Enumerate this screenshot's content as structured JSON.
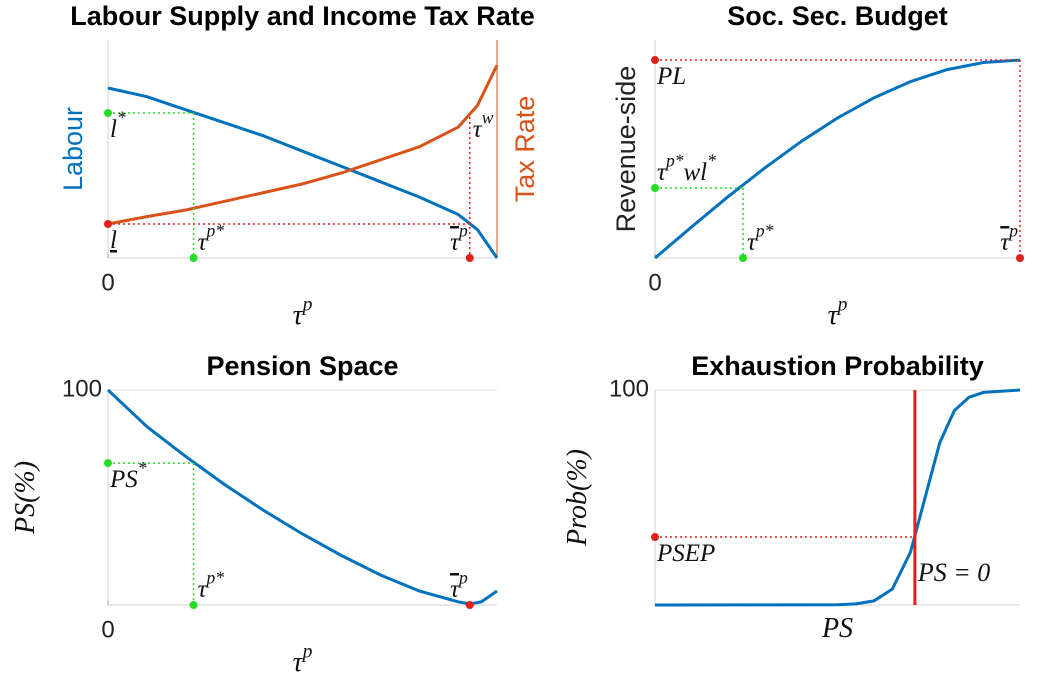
{
  "chart_data": [
    {
      "type": "line",
      "title": "Labour Supply and Income Tax Rate",
      "xlabel": [
        {
          "text": "τ",
          "sup": "p"
        }
      ],
      "xlim": [
        0,
        1
      ],
      "ylim": [
        0,
        1
      ],
      "y2lim": [
        0,
        1
      ],
      "xticks": [
        0
      ],
      "series": [
        {
          "name": "Labour",
          "color": "#0072bd",
          "x": [
            0,
            0.1,
            0.2,
            0.3,
            0.4,
            0.5,
            0.6,
            0.7,
            0.8,
            0.9,
            0.95,
            1
          ],
          "values": [
            0.78,
            0.74,
            0.68,
            0.62,
            0.56,
            0.49,
            0.42,
            0.35,
            0.28,
            0.2,
            0.13,
            0
          ]
        },
        {
          "name": "Tax Rate",
          "color": "#d95319",
          "axis": "y2",
          "x": [
            0,
            0.1,
            0.2,
            0.3,
            0.4,
            0.5,
            0.6,
            0.7,
            0.8,
            0.9,
            0.95,
            1
          ],
          "values": [
            0.156,
            0.19,
            0.22,
            0.26,
            0.3,
            0.34,
            0.39,
            0.45,
            0.51,
            0.6,
            0.7,
            0.885
          ]
        }
      ],
      "guides": [
        {
          "color": "#22dd22",
          "x": 0.22,
          "y": 0.665,
          "y_label": [
            {
              "text": "l",
              "sup": "*"
            }
          ],
          "x_label": [
            {
              "text": "τ",
              "sup": "p*"
            }
          ]
        },
        {
          "color": "#e0201b",
          "x": 0.93,
          "y": 0.156,
          "y_top": 0.647,
          "y_label": [
            {
              "text": "l",
              "underline": true
            }
          ],
          "x_label": [
            {
              "text": "τ",
              "sup": "p",
              "overline": true
            }
          ],
          "top_label": [
            {
              "text": "τ",
              "sup": "w"
            }
          ]
        }
      ]
    },
    {
      "type": "line",
      "title": "Soc. Sec. Budget",
      "xlabel": [
        {
          "text": "τ",
          "sup": "p"
        }
      ],
      "ylabel": "Revenue-side",
      "xlim": [
        0,
        1
      ],
      "ylim": [
        0,
        1
      ],
      "xticks": [
        0
      ],
      "series": [
        {
          "color": "#0072bd",
          "x": [
            0,
            0.1,
            0.2,
            0.3,
            0.4,
            0.5,
            0.6,
            0.7,
            0.8,
            0.9,
            1
          ],
          "values": [
            0,
            0.142,
            0.281,
            0.412,
            0.534,
            0.642,
            0.735,
            0.809,
            0.864,
            0.897,
            0.908
          ]
        }
      ],
      "guides": [
        {
          "color": "#22dd22",
          "x": 0.241,
          "y": 0.321,
          "y_label_pos": "above",
          "y_label": [
            {
              "text": "τ",
              "sup": "p*"
            },
            {
              "text": "wl",
              "sup": "*"
            }
          ],
          "x_label": [
            {
              "text": "τ",
              "sup": "p*"
            }
          ]
        },
        {
          "color": "#e0201b",
          "x": 1,
          "y": 0.908,
          "y_label": [
            {
              "text": "PL"
            }
          ],
          "x_label": [
            {
              "text": "τ",
              "sup": "p",
              "overline": true
            }
          ]
        }
      ]
    },
    {
      "type": "line",
      "title": "Pension Space",
      "xlabel": [
        {
          "text": "τ",
          "sup": "p"
        }
      ],
      "ylabel": [
        {
          "text": "PS(%)"
        }
      ],
      "xlim": [
        0,
        1
      ],
      "ylim": [
        0,
        100
      ],
      "xticks": [
        0
      ],
      "yticks": [
        100
      ],
      "series": [
        {
          "color": "#0072bd",
          "x": [
            0,
            0.1,
            0.2,
            0.3,
            0.4,
            0.5,
            0.6,
            0.7,
            0.8,
            0.9,
            0.93,
            0.96,
            1
          ],
          "values": [
            100,
            83,
            69,
            56,
            44,
            33,
            23,
            14,
            6.5,
            1.5,
            0.5,
            1.5,
            6.5
          ]
        }
      ],
      "guides": [
        {
          "color": "#22dd22",
          "x": 0.22,
          "y": 66,
          "y_label": [
            {
              "text": "PS",
              "sup": "*"
            }
          ],
          "x_label": [
            {
              "text": "τ",
              "sup": "p*"
            }
          ]
        },
        {
          "color": "#e0201b",
          "x": 0.93,
          "x_label": [
            {
              "text": "τ",
              "sup": "p",
              "overline": true
            }
          ]
        }
      ]
    },
    {
      "type": "line",
      "title": "Exhaustion Probability",
      "xlabel": [
        {
          "text": "PS"
        }
      ],
      "ylabel": [
        {
          "text": "Prob(%)"
        }
      ],
      "xlim": [
        0,
        1
      ],
      "ylim": [
        0,
        100
      ],
      "yticks": [
        100
      ],
      "series": [
        {
          "color": "#0072bd",
          "x": [
            0,
            0.5,
            0.55,
            0.6,
            0.65,
            0.7,
            0.74,
            0.78,
            0.82,
            0.86,
            0.9,
            1
          ],
          "values": [
            0,
            0.1,
            0.5,
            1.9,
            7.4,
            24.6,
            50,
            75.4,
            90.4,
            96.6,
            98.9,
            100
          ]
        }
      ],
      "vline": {
        "x": 0.712,
        "color": "#e0201b",
        "label": [
          {
            "text": "PS = 0"
          }
        ]
      },
      "guides": [
        {
          "color": "#e0201b",
          "x": 0.712,
          "y": 31.6,
          "vertical": false,
          "y_label": [
            {
              "text": "PSEP"
            }
          ]
        }
      ]
    }
  ]
}
